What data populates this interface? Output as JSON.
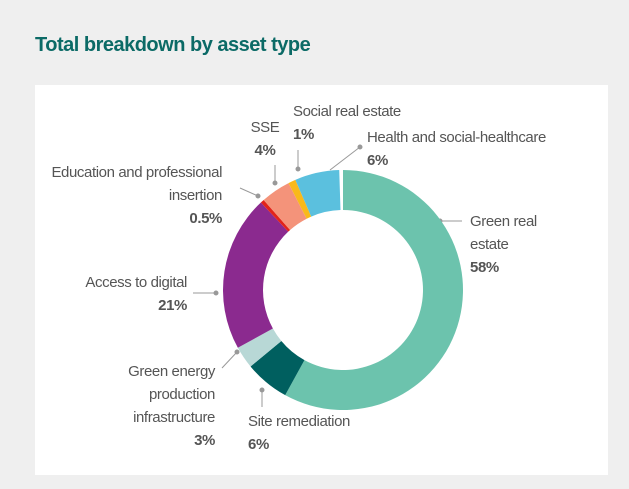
{
  "chart_data": {
    "type": "donut",
    "title": "Total breakdown by asset type",
    "categories": [
      "Green real estate",
      "Site remediation",
      "Green energy production infrastructure",
      "Access to digital",
      "Education and professional insertion",
      "SSE",
      "Social real estate",
      "Health and social-healthcare"
    ],
    "values": [
      58,
      6,
      3,
      21,
      0.5,
      4,
      1,
      6
    ],
    "value_labels": [
      "58%",
      "6%",
      "3%",
      "21%",
      "0.5%",
      "4%",
      "1%",
      "6%"
    ],
    "colors": [
      "#6cc3ad",
      "#005f5f",
      "#b8d8d6",
      "#8b2a8f",
      "#e2231a",
      "#f4937a",
      "#f9b91a",
      "#5bc0de"
    ]
  }
}
